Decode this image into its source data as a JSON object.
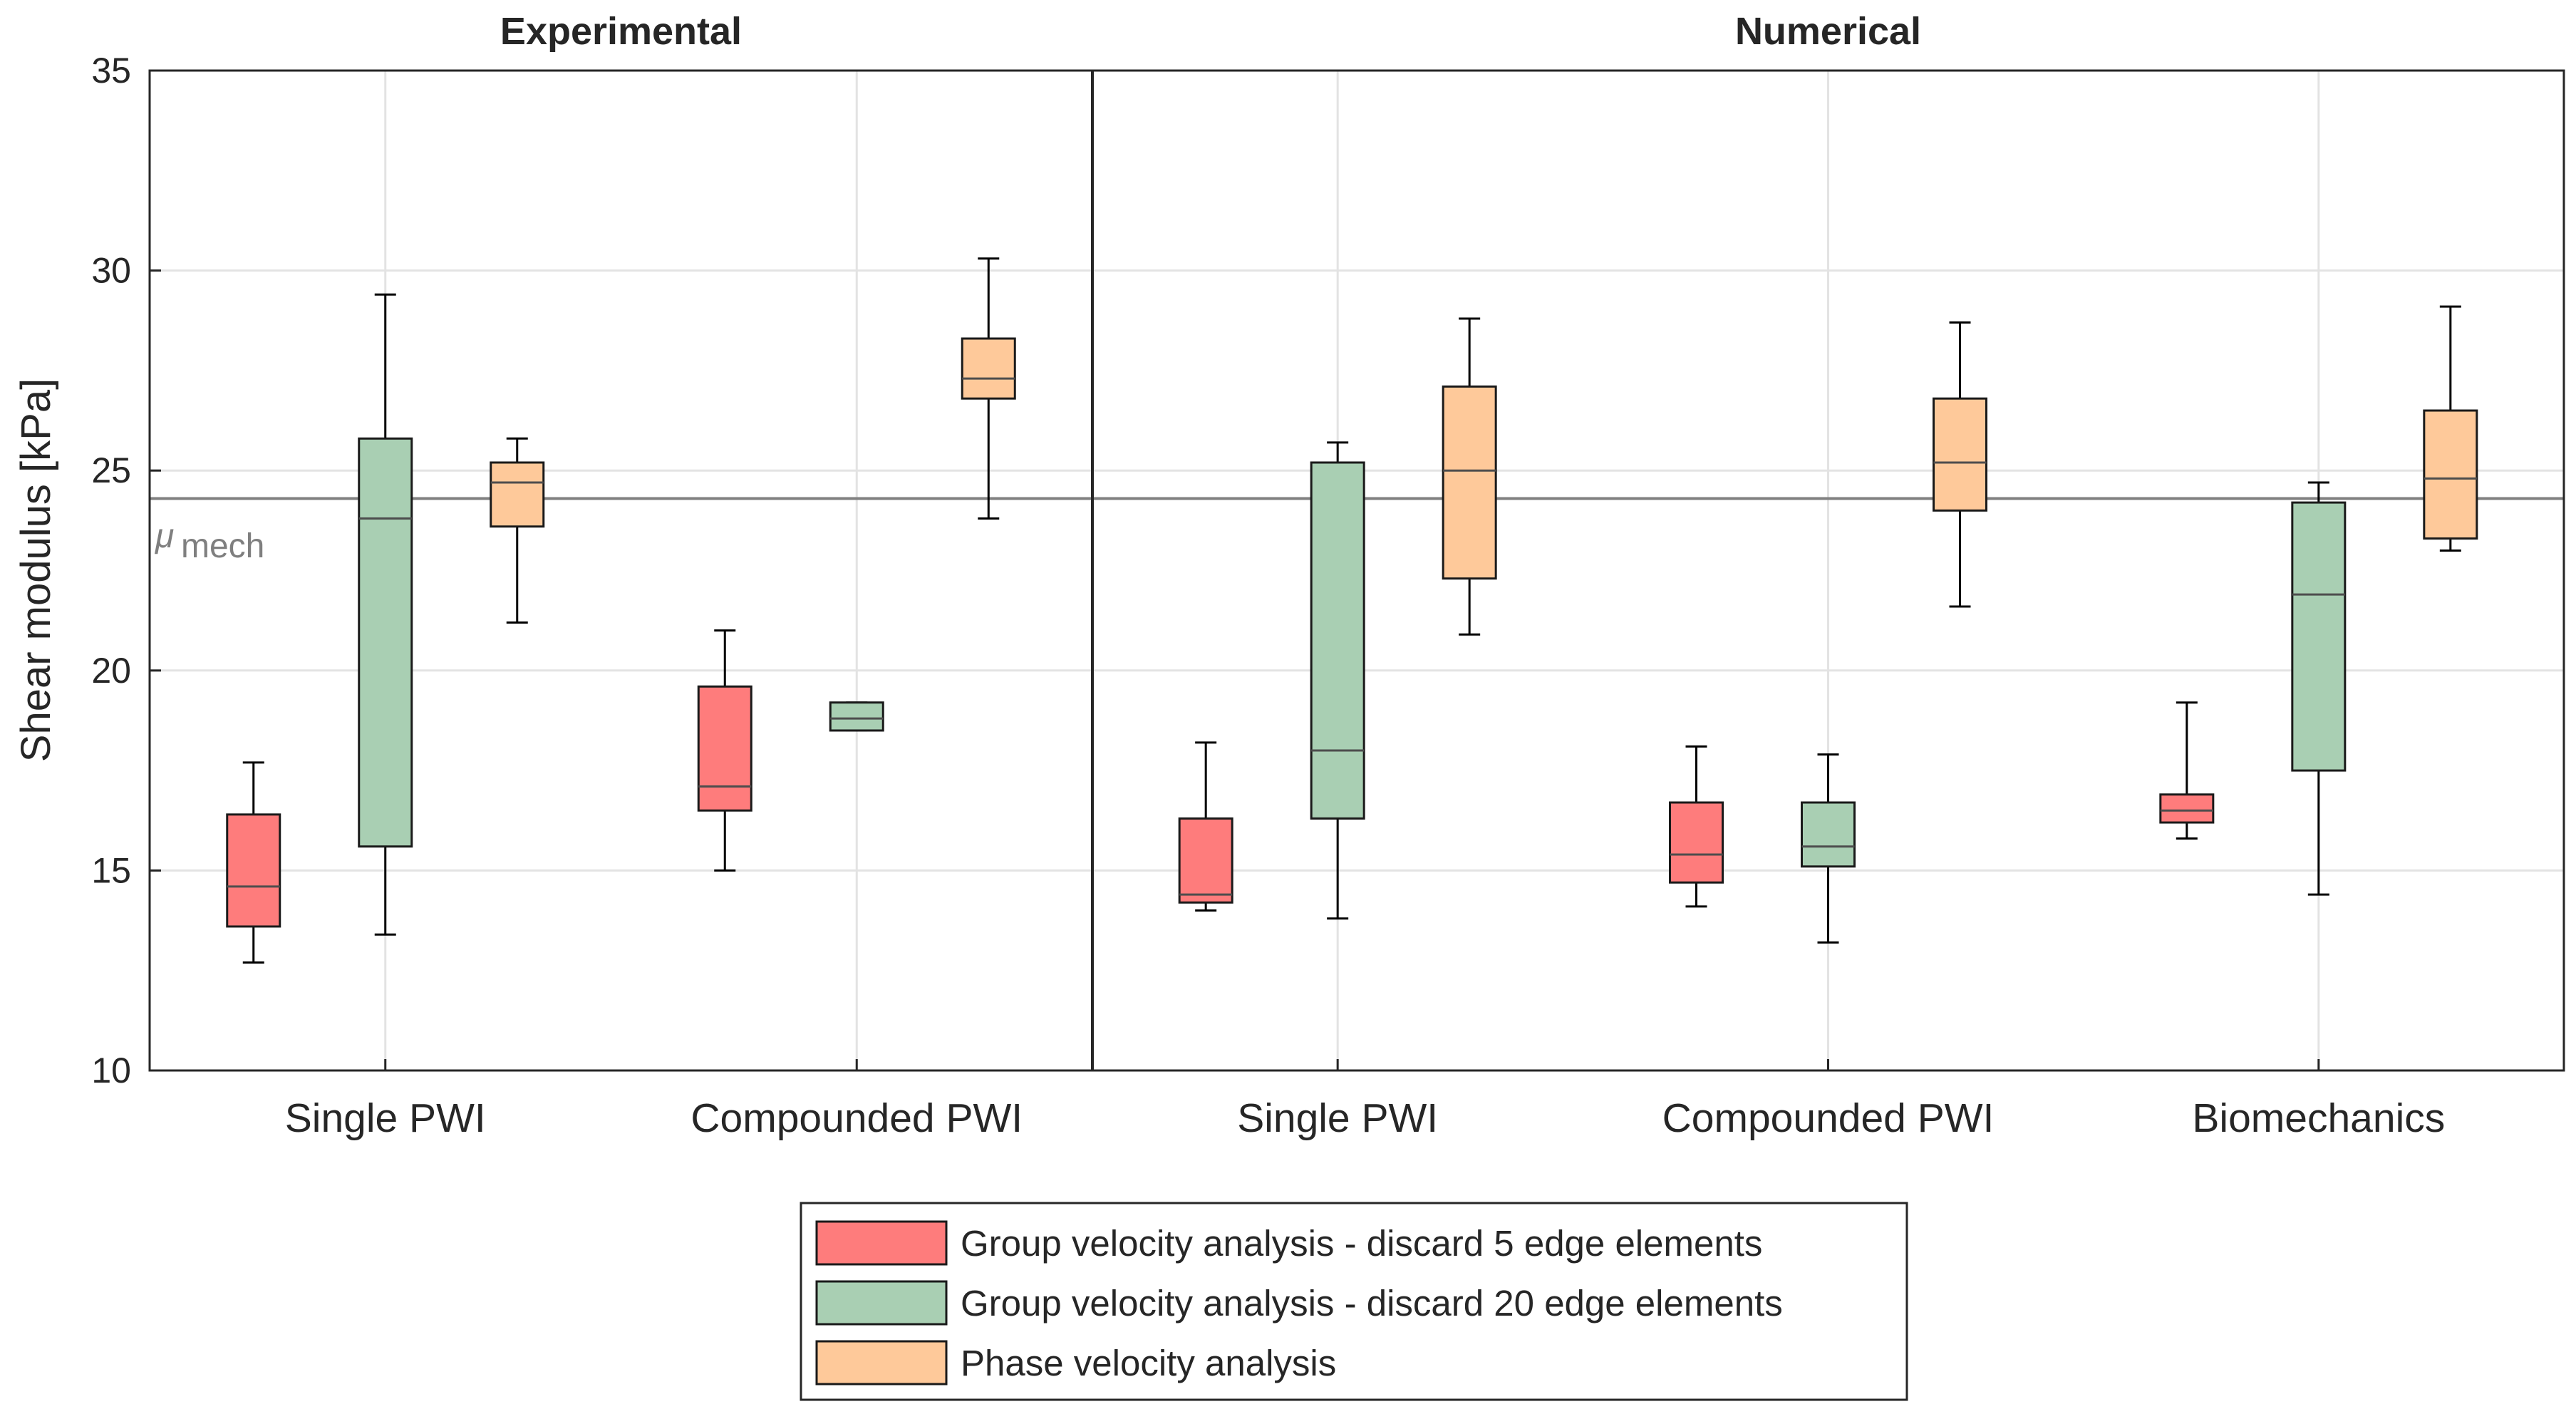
{
  "chart_data": {
    "type": "box",
    "ylabel": "Shear modulus [kPa]",
    "ylim": [
      10,
      35
    ],
    "yticks": [
      10,
      15,
      20,
      25,
      30,
      35
    ],
    "grid": true,
    "legend_position": "bottom-center",
    "reference_line": {
      "value": 24.3,
      "label": "μ",
      "label_sub": "mech",
      "color": "#808080"
    },
    "series": [
      {
        "name": "Group velocity analysis - discard 5 edge elements",
        "color": "#fe7c7c"
      },
      {
        "name": "Group velocity analysis - discard 20 edge elements",
        "color": "#a9cfb3"
      },
      {
        "name": "Phase velocity analysis",
        "color": "#fec99a"
      }
    ],
    "panels": [
      {
        "title": "Experimental",
        "categories": [
          {
            "name": "Single PWI",
            "boxes": [
              {
                "series": 0,
                "whisker_low": 12.7,
                "q1": 13.6,
                "median": 14.6,
                "q3": 16.4,
                "whisker_high": 17.7
              },
              {
                "series": 1,
                "whisker_low": 13.4,
                "q1": 15.6,
                "median": 23.8,
                "q3": 25.8,
                "whisker_high": 29.4
              },
              {
                "series": 2,
                "whisker_low": 21.2,
                "q1": 23.6,
                "median": 24.7,
                "q3": 25.2,
                "whisker_high": 25.8
              }
            ]
          },
          {
            "name": "Compounded PWI",
            "boxes": [
              {
                "series": 0,
                "whisker_low": 15.0,
                "q1": 16.5,
                "median": 17.1,
                "q3": 19.6,
                "whisker_high": 21.0
              },
              {
                "series": 1,
                "whisker_low": 18.5,
                "q1": 18.5,
                "median": 18.8,
                "q3": 19.2,
                "whisker_high": 19.2
              },
              {
                "series": 2,
                "whisker_low": 23.8,
                "q1": 26.8,
                "median": 27.3,
                "q3": 28.3,
                "whisker_high": 30.3
              }
            ]
          }
        ]
      },
      {
        "title": "Numerical",
        "categories": [
          {
            "name": "Single PWI",
            "boxes": [
              {
                "series": 0,
                "whisker_low": 14.0,
                "q1": 14.2,
                "median": 14.4,
                "q3": 16.3,
                "whisker_high": 18.2
              },
              {
                "series": 1,
                "whisker_low": 13.8,
                "q1": 16.3,
                "median": 18.0,
                "q3": 25.2,
                "whisker_high": 25.7
              },
              {
                "series": 2,
                "whisker_low": 20.9,
                "q1": 22.3,
                "median": 25.0,
                "q3": 27.1,
                "whisker_high": 28.8
              }
            ]
          },
          {
            "name": "Compounded PWI",
            "boxes": [
              {
                "series": 0,
                "whisker_low": 14.1,
                "q1": 14.7,
                "median": 15.4,
                "q3": 16.7,
                "whisker_high": 18.1
              },
              {
                "series": 1,
                "whisker_low": 13.2,
                "q1": 15.1,
                "median": 15.6,
                "q3": 16.7,
                "whisker_high": 17.9
              },
              {
                "series": 2,
                "whisker_low": 21.6,
                "q1": 24.0,
                "median": 25.2,
                "q3": 26.8,
                "whisker_high": 28.7
              }
            ]
          },
          {
            "name": "Biomechanics",
            "boxes": [
              {
                "series": 0,
                "whisker_low": 15.8,
                "q1": 16.2,
                "median": 16.5,
                "q3": 16.9,
                "whisker_high": 19.2
              },
              {
                "series": 1,
                "whisker_low": 14.4,
                "q1": 17.5,
                "median": 21.9,
                "q3": 24.2,
                "whisker_high": 24.7
              },
              {
                "series": 2,
                "whisker_low": 23.0,
                "q1": 23.3,
                "median": 24.8,
                "q3": 26.5,
                "whisker_high": 29.1
              }
            ]
          }
        ]
      }
    ]
  }
}
